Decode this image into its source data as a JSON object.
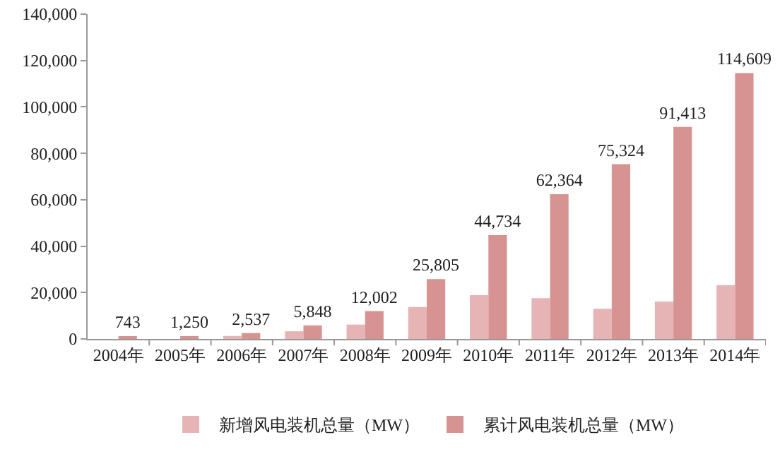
{
  "chart_data": {
    "type": "bar",
    "categories": [
      "2004年",
      "2005年",
      "2006年",
      "2007年",
      "2008年",
      "2009年",
      "2010年",
      "2011年",
      "2012年",
      "2013年",
      "2014年"
    ],
    "series": [
      {
        "name": "新增风电装机总量（MW）",
        "color": "#e6b4b4",
        "values": [
          null,
          null,
          1300,
          3300,
          6200,
          13800,
          18900,
          17600,
          13000,
          16100,
          23200
        ]
      },
      {
        "name": "累计风电装机总量（MW）",
        "color": "#d79392",
        "values": [
          743,
          1250,
          2537,
          5848,
          12002,
          25805,
          44734,
          62364,
          75324,
          91413,
          114609
        ],
        "value_labels": [
          "743",
          "1,250",
          "2,537",
          "5,848",
          "12,002",
          "25,805",
          "44,734",
          "62,364",
          "75,324",
          "91,413",
          "114,609"
        ]
      }
    ],
    "ylim": [
      0,
      140000
    ],
    "yticks": [
      {
        "value": 0,
        "label": "0"
      },
      {
        "value": 20000,
        "label": "20,000"
      },
      {
        "value": 40000,
        "label": "40,000"
      },
      {
        "value": 60000,
        "label": "60,000"
      },
      {
        "value": 80000,
        "label": "80,000"
      },
      {
        "value": 100000,
        "label": "100,000"
      },
      {
        "value": 120000,
        "label": "120,000"
      },
      {
        "value": 140000,
        "label": "140,000"
      }
    ],
    "grid": false,
    "legend": "bottom"
  }
}
